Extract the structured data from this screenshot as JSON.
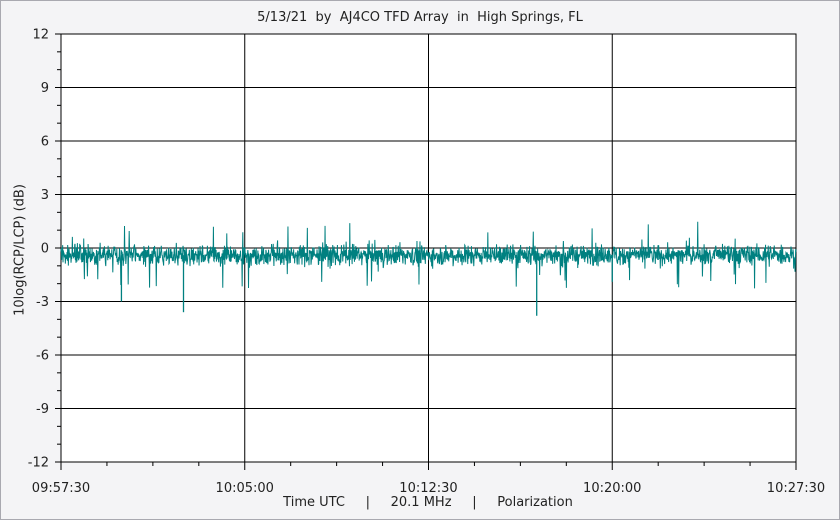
{
  "chart_data": {
    "type": "line",
    "title": "5/13/21  by  AJ4CO TFD Array  in  High Springs, FL",
    "ylabel": "10log(RCP/LCP) (dB)",
    "x_caption": {
      "quantity": "Time UTC",
      "frequency": "20.1 MHz",
      "measurement": "Polarization",
      "separator": "|"
    },
    "x_ticks": [
      "09:57:30",
      "10:05:00",
      "10:12:30",
      "10:20:00",
      "10:27:30"
    ],
    "x_range": [
      "09:57:30",
      "10:27:30"
    ],
    "y_ticks": [
      12,
      9,
      6,
      3,
      0,
      -3,
      -6,
      -9,
      -12
    ],
    "ylim": [
      -12,
      12
    ],
    "grid": true,
    "series": [
      {
        "color": "#008080",
        "baseline": -0.4,
        "typical_range": [
          -1.2,
          0.6
        ],
        "notable_dips": [
          {
            "time": "09:59:58",
            "value": -3.0
          },
          {
            "time": "10:02:30",
            "value": -3.6
          },
          {
            "time": "10:16:55",
            "value": -3.8
          },
          {
            "time": "10:20:00",
            "value": -1.9
          }
        ]
      }
    ]
  }
}
